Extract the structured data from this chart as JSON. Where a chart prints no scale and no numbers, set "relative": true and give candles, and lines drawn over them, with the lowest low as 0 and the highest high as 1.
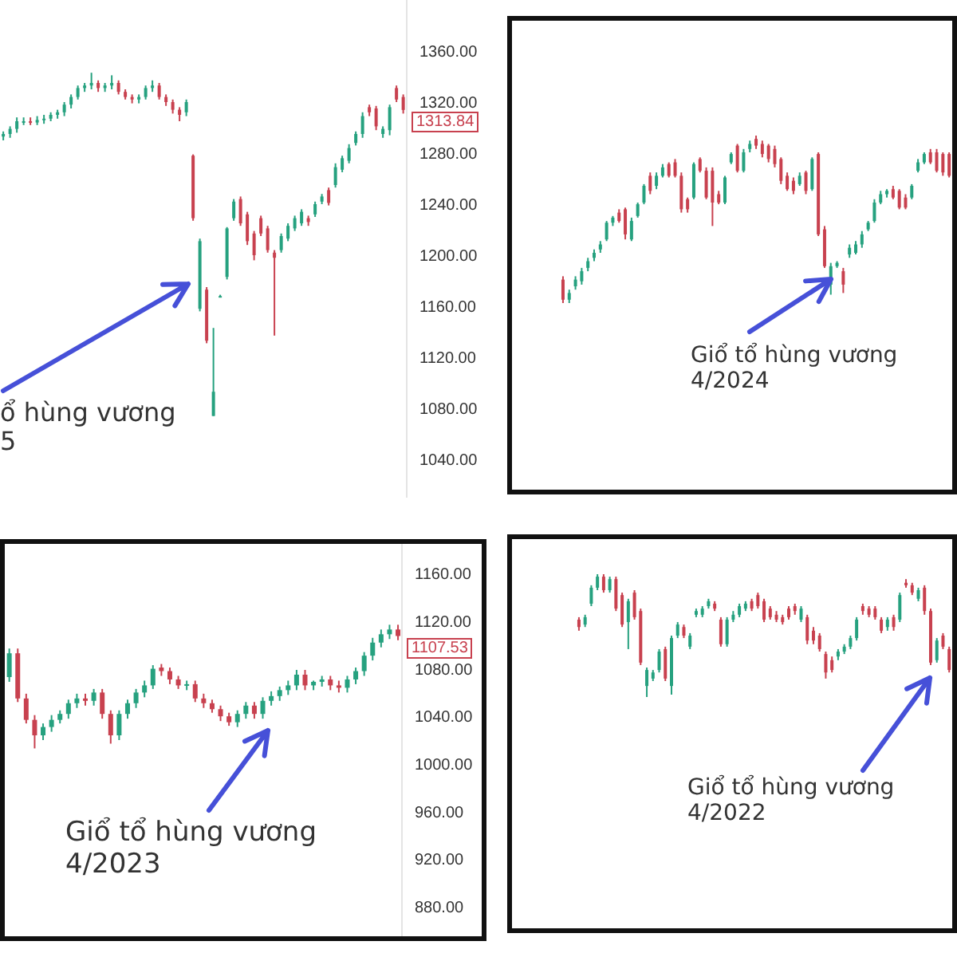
{
  "chart_data": [
    {
      "type": "candlestick",
      "ylim": [
        1010,
        1400
      ],
      "colors": [
        "#26a17f",
        "#26a17f",
        "#26a17f",
        "#26a17f",
        "#c8414f",
        "#26a17f",
        "#26a17f",
        "#26a17f",
        "#26a17f",
        "#26a17f",
        "#26a17f",
        "#26a17f",
        "#26a17f",
        "#26a17f",
        "#c8414f",
        "#26a17f",
        "#26a17f",
        "#c8414f",
        "#c8414f",
        "#c8414f",
        "#26a17f",
        "#26a17f",
        "#26a17f",
        "#c8414f",
        "#c8414f",
        "#c8414f",
        "#c8414f",
        "#26a17f",
        "#c8414f",
        "#26a17f",
        "#c8414f",
        "#26a17f",
        "#26a17f",
        "#26a17f",
        "#26a17f",
        "#c8414f",
        "#c8414f",
        "#c8414f",
        "#c8414f",
        "#c8414f",
        "#c8414f",
        "#26a17f",
        "#26a17f",
        "#26a17f",
        "#26a17f",
        "#c8414f",
        "#26a17f",
        "#26a17f",
        "#c8414f",
        "#26a17f",
        "#26a17f",
        "#26a17f",
        "#26a17f",
        "#26a17f",
        "#c8414f",
        "#c8414f",
        "#26a17f",
        "#26a17f",
        "#c8414f",
        "#c8414f"
      ],
      "yticks": [
        {
          "value": 1040,
          "label": "1040.00"
        },
        {
          "value": 1080,
          "label": "1080.00"
        },
        {
          "value": 1120,
          "label": "1120.00"
        },
        {
          "value": 1160,
          "label": "1160.00"
        },
        {
          "value": 1200,
          "label": "1200.00"
        },
        {
          "value": 1240,
          "label": "1240.00"
        },
        {
          "value": 1280,
          "label": "1280.00"
        },
        {
          "value": 1320,
          "label": "1320.00"
        },
        {
          "value": 1360,
          "label": "1360.00"
        }
      ],
      "categories": [
        null,
        null,
        null,
        null,
        null,
        null,
        null,
        null,
        null,
        null,
        null,
        null,
        null,
        null,
        null,
        null,
        null,
        null,
        null,
        null,
        null,
        null,
        null,
        null,
        null,
        null,
        null,
        null,
        null,
        null,
        null,
        null,
        null,
        null,
        null,
        null,
        null,
        null,
        null,
        null,
        null,
        null,
        null,
        null,
        null,
        null,
        null,
        null,
        null,
        null,
        null,
        null,
        null,
        null,
        null,
        null,
        null,
        null,
        null,
        null
      ],
      "ohlc": [
        [
          1293,
          1297,
          1290,
          1295
        ],
        [
          1295,
          1301,
          1292,
          1299
        ],
        [
          1299,
          1308,
          1296,
          1305
        ],
        [
          1304,
          1308,
          1302,
          1305
        ],
        [
          1305,
          1308,
          1302,
          1304
        ],
        [
          1304,
          1309,
          1302,
          1306
        ],
        [
          1306,
          1310,
          1303,
          1307
        ],
        [
          1307,
          1312,
          1305,
          1310
        ],
        [
          1310,
          1314,
          1307,
          1312
        ],
        [
          1312,
          1320,
          1309,
          1318
        ],
        [
          1318,
          1326,
          1315,
          1324
        ],
        [
          1324,
          1333,
          1322,
          1331
        ],
        [
          1331,
          1335,
          1328,
          1333
        ],
        [
          1333,
          1343,
          1330,
          1335
        ],
        [
          1335,
          1337,
          1328,
          1331
        ],
        [
          1331,
          1335,
          1328,
          1333
        ],
        [
          1333,
          1341,
          1330,
          1335
        ],
        [
          1335,
          1337,
          1326,
          1328
        ],
        [
          1328,
          1330,
          1322,
          1324
        ],
        [
          1324,
          1326,
          1319,
          1322
        ],
        [
          1322,
          1326,
          1319,
          1324
        ],
        [
          1324,
          1333,
          1322,
          1331
        ],
        [
          1331,
          1337,
          1328,
          1333
        ],
        [
          1333,
          1335,
          1322,
          1324
        ],
        [
          1324,
          1326,
          1317,
          1320
        ],
        [
          1320,
          1322,
          1311,
          1314
        ],
        [
          1314,
          1316,
          1305,
          1310
        ],
        [
          1312,
          1322,
          1309,
          1320
        ],
        [
          1278,
          1279,
          1227,
          1229
        ],
        [
          1158,
          1213,
          1156,
          1211
        ],
        [
          1173,
          1175,
          1131,
          1133
        ],
        [
          1074,
          1143,
          1074,
          1093
        ],
        [
          1168,
          1169,
          1167,
          1168
        ],
        [
          1183,
          1222,
          1181,
          1221
        ],
        [
          1229,
          1244,
          1227,
          1242
        ],
        [
          1244,
          1246,
          1223,
          1225
        ],
        [
          1232,
          1234,
          1208,
          1211
        ],
        [
          1217,
          1219,
          1196,
          1200
        ],
        [
          1229,
          1231,
          1215,
          1217
        ],
        [
          1221,
          1223,
          1202,
          1204
        ],
        [
          1202,
          1204,
          1137,
          1198
        ],
        [
          1204,
          1217,
          1202,
          1215
        ],
        [
          1213,
          1225,
          1211,
          1223
        ],
        [
          1221,
          1231,
          1219,
          1229
        ],
        [
          1225,
          1236,
          1223,
          1234
        ],
        [
          1229,
          1231,
          1223,
          1226
        ],
        [
          1232,
          1242,
          1230,
          1240
        ],
        [
          1242,
          1248,
          1240,
          1246
        ],
        [
          1251,
          1253,
          1239,
          1241
        ],
        [
          1255,
          1272,
          1253,
          1269
        ],
        [
          1267,
          1278,
          1265,
          1276
        ],
        [
          1274,
          1287,
          1272,
          1284
        ],
        [
          1288,
          1297,
          1286,
          1295
        ],
        [
          1295,
          1312,
          1292,
          1309
        ],
        [
          1316,
          1318,
          1309,
          1312
        ],
        [
          1315,
          1317,
          1298,
          1301
        ],
        [
          1295,
          1301,
          1292,
          1299
        ],
        [
          1298,
          1318,
          1294,
          1316
        ],
        [
          1331,
          1333,
          1320,
          1322
        ],
        [
          1324,
          1326,
          1311,
          1313.84
        ]
      ],
      "annotations": [
        "ổ hùng vương\n5",
        "1313.84"
      ]
    },
    {
      "type": "candlestick",
      "relative": true,
      "colors": [
        "#c8414f",
        "#26a17f",
        "#26a17f",
        "#26a17f",
        "#26a17f",
        "#26a17f",
        "#26a17f",
        "#26a17f",
        "#26a17f",
        "#c8414f",
        "#c8414f",
        "#26a17f",
        "#26a17f",
        "#26a17f",
        "#c8414f",
        "#26a17f",
        "#26a17f",
        "#c8414f",
        "#c8414f",
        "#c8414f",
        "#c8414f",
        "#26a17f",
        "#c8414f",
        "#c8414f",
        "#c8414f",
        "#c8414f",
        "#26a17f",
        "#26a17f",
        "#c8414f",
        "#26a17f",
        "#26a17f",
        "#c8414f",
        "#c8414f",
        "#c8414f",
        "#c8414f",
        "#c8414f",
        "#c8414f",
        "#c8414f",
        "#26a17f",
        "#c8414f",
        "#26a17f",
        "#c8414f",
        "#c8414f",
        "#26a17f",
        "#26a17f",
        "#c8414f",
        "#26a17f",
        "#26a17f",
        "#26a17f",
        "#26a17f",
        "#26a17f",
        "#26a17f",
        "#26a17f",
        "#c8414f",
        "#c8414f",
        "#c8414f",
        "#26a17f",
        "#26a17f",
        "#26a17f",
        "#c8414f",
        "#c8414f",
        "#c8414f",
        "#c8414f"
      ],
      "categories": [
        null,
        null,
        null,
        null,
        null,
        null,
        null,
        null,
        null,
        null,
        null,
        null,
        null,
        null,
        null,
        null,
        null,
        null,
        null,
        null,
        null,
        null,
        null,
        null,
        null,
        null,
        null,
        null,
        null,
        null,
        null,
        null,
        null,
        null,
        null,
        null,
        null,
        null,
        null,
        null,
        null,
        null,
        null,
        null,
        null,
        null,
        null,
        null,
        null,
        null,
        null,
        null,
        null,
        null,
        null,
        null,
        null,
        null,
        null,
        null,
        null,
        null,
        null
      ],
      "ohlc": [
        [
          0.14,
          0.16,
          0.0,
          0.02
        ],
        [
          0.02,
          0.08,
          0.0,
          0.06
        ],
        [
          0.1,
          0.16,
          0.08,
          0.14
        ],
        [
          0.13,
          0.21,
          0.11,
          0.19
        ],
        [
          0.21,
          0.27,
          0.19,
          0.25
        ],
        [
          0.27,
          0.32,
          0.25,
          0.3
        ],
        [
          0.32,
          0.37,
          0.3,
          0.35
        ],
        [
          0.38,
          0.49,
          0.37,
          0.48
        ],
        [
          0.48,
          0.52,
          0.46,
          0.51
        ],
        [
          0.54,
          0.56,
          0.48,
          0.49
        ],
        [
          0.56,
          0.57,
          0.38,
          0.41
        ],
        [
          0.38,
          0.51,
          0.37,
          0.49
        ],
        [
          0.52,
          0.6,
          0.51,
          0.59
        ],
        [
          0.6,
          0.71,
          0.59,
          0.7
        ],
        [
          0.76,
          0.78,
          0.65,
          0.67
        ],
        [
          0.7,
          0.78,
          0.68,
          0.76
        ],
        [
          0.76,
          0.83,
          0.75,
          0.81
        ],
        [
          0.83,
          0.84,
          0.75,
          0.76
        ],
        [
          0.84,
          0.86,
          0.75,
          0.76
        ],
        [
          0.76,
          0.78,
          0.54,
          0.56
        ],
        [
          0.62,
          0.63,
          0.54,
          0.56
        ],
        [
          0.63,
          0.84,
          0.62,
          0.83
        ],
        [
          0.86,
          0.87,
          0.78,
          0.79
        ],
        [
          0.79,
          0.81,
          0.62,
          0.63
        ],
        [
          0.79,
          0.81,
          0.46,
          0.6
        ],
        [
          0.65,
          0.67,
          0.59,
          0.6
        ],
        [
          0.6,
          0.76,
          0.59,
          0.75
        ],
        [
          0.84,
          0.9,
          0.83,
          0.89
        ],
        [
          0.94,
          0.95,
          0.78,
          0.79
        ],
        [
          0.79,
          0.92,
          0.78,
          0.9
        ],
        [
          0.92,
          0.97,
          0.9,
          0.95
        ],
        [
          0.98,
          1.0,
          0.92,
          0.94
        ],
        [
          0.95,
          0.97,
          0.87,
          0.89
        ],
        [
          0.94,
          0.95,
          0.84,
          0.86
        ],
        [
          0.92,
          0.94,
          0.81,
          0.83
        ],
        [
          0.86,
          0.87,
          0.71,
          0.73
        ],
        [
          0.76,
          0.78,
          0.67,
          0.68
        ],
        [
          0.73,
          0.75,
          0.65,
          0.67
        ],
        [
          0.71,
          0.78,
          0.7,
          0.76
        ],
        [
          0.78,
          0.79,
          0.65,
          0.67
        ],
        [
          0.68,
          0.87,
          0.67,
          0.86
        ],
        [
          0.89,
          0.9,
          0.4,
          0.41
        ],
        [
          0.44,
          0.46,
          0.21,
          0.22
        ],
        [
          0.11,
          0.24,
          0.05,
          0.22
        ],
        [
          0.22,
          0.25,
          0.21,
          0.24
        ],
        [
          0.19,
          0.21,
          0.06,
          0.11
        ],
        [
          0.29,
          0.35,
          0.27,
          0.33
        ],
        [
          0.3,
          0.37,
          0.29,
          0.35
        ],
        [
          0.35,
          0.43,
          0.33,
          0.41
        ],
        [
          0.44,
          0.49,
          0.43,
          0.48
        ],
        [
          0.49,
          0.62,
          0.48,
          0.6
        ],
        [
          0.6,
          0.67,
          0.59,
          0.65
        ],
        [
          0.65,
          0.68,
          0.63,
          0.67
        ],
        [
          0.68,
          0.7,
          0.62,
          0.63
        ],
        [
          0.67,
          0.68,
          0.56,
          0.57
        ],
        [
          0.63,
          0.65,
          0.56,
          0.57
        ],
        [
          0.63,
          0.71,
          0.62,
          0.7
        ],
        [
          0.79,
          0.86,
          0.78,
          0.84
        ],
        [
          0.84,
          0.9,
          0.83,
          0.89
        ],
        [
          0.9,
          0.92,
          0.83,
          0.84
        ],
        [
          0.9,
          0.92,
          0.78,
          0.79
        ],
        [
          0.89,
          0.9,
          0.76,
          0.78
        ],
        [
          0.89,
          0.9,
          0.75,
          0.76
        ]
      ],
      "annotations": [
        "Giổ tổ hùng vương\n4/2024"
      ]
    },
    {
      "type": "candlestick",
      "ylim": [
        855,
        1185
      ],
      "colors": [
        "#26a17f",
        "#c8414f",
        "#c8414f",
        "#c8414f",
        "#26a17f",
        "#26a17f",
        "#26a17f",
        "#26a17f",
        "#26a17f",
        "#c8414f",
        "#26a17f",
        "#c8414f",
        "#c8414f",
        "#26a17f",
        "#26a17f",
        "#26a17f",
        "#26a17f",
        "#26a17f",
        "#c8414f",
        "#c8414f",
        "#c8414f",
        "#26a17f",
        "#c8414f",
        "#c8414f",
        "#c8414f",
        "#c8414f",
        "#c8414f",
        "#26a17f",
        "#26a17f",
        "#c8414f",
        "#26a17f",
        "#26a17f",
        "#26a17f",
        "#26a17f",
        "#26a17f",
        "#c8414f",
        "#26a17f",
        "#26a17f",
        "#c8414f",
        "#c8414f",
        "#26a17f",
        "#26a17f",
        "#26a17f",
        "#26a17f",
        "#26a17f",
        "#26a17f",
        "#c8414f"
      ],
      "yticks": [
        {
          "value": 880,
          "label": "880.00"
        },
        {
          "value": 920,
          "label": "920.00"
        },
        {
          "value": 960,
          "label": "960.00"
        },
        {
          "value": 1000,
          "label": "1000.00"
        },
        {
          "value": 1040,
          "label": "1040.00"
        },
        {
          "value": 1080,
          "label": "1080.00"
        },
        {
          "value": 1120,
          "label": "1120.00"
        },
        {
          "value": 1160,
          "label": "1160.00"
        }
      ],
      "categories": [
        null,
        null,
        null,
        null,
        null,
        null,
        null,
        null,
        null,
        null,
        null,
        null,
        null,
        null,
        null,
        null,
        null,
        null,
        null,
        null,
        null,
        null,
        null,
        null,
        null,
        null,
        null,
        null,
        null,
        null,
        null,
        null,
        null,
        null,
        null,
        null,
        null,
        null,
        null,
        null,
        null,
        null,
        null,
        null,
        null,
        null,
        null
      ],
      "ohlc": [
        [
          1073,
          1097,
          1069,
          1093
        ],
        [
          1093,
          1097,
          1052,
          1055
        ],
        [
          1055,
          1059,
          1034,
          1037
        ],
        [
          1037,
          1041,
          1013,
          1024
        ],
        [
          1024,
          1034,
          1020,
          1031
        ],
        [
          1031,
          1041,
          1027,
          1037
        ],
        [
          1037,
          1045,
          1034,
          1042
        ],
        [
          1042,
          1054,
          1038,
          1051
        ],
        [
          1051,
          1059,
          1047,
          1055
        ],
        [
          1055,
          1059,
          1049,
          1053
        ],
        [
          1053,
          1063,
          1049,
          1060
        ],
        [
          1060,
          1063,
          1038,
          1042
        ],
        [
          1042,
          1045,
          1017,
          1024
        ],
        [
          1024,
          1045,
          1020,
          1042
        ],
        [
          1042,
          1054,
          1038,
          1051
        ],
        [
          1051,
          1063,
          1047,
          1060
        ],
        [
          1060,
          1070,
          1056,
          1066
        ],
        [
          1066,
          1083,
          1063,
          1080
        ],
        [
          1081,
          1084,
          1074,
          1078
        ],
        [
          1078,
          1081,
          1067,
          1071
        ],
        [
          1071,
          1074,
          1063,
          1066
        ],
        [
          1066,
          1070,
          1062,
          1067
        ],
        [
          1067,
          1070,
          1052,
          1055
        ],
        [
          1055,
          1059,
          1047,
          1051
        ],
        [
          1051,
          1054,
          1043,
          1046
        ],
        [
          1046,
          1049,
          1036,
          1040
        ],
        [
          1040,
          1043,
          1032,
          1035
        ],
        [
          1035,
          1045,
          1031,
          1042
        ],
        [
          1042,
          1052,
          1038,
          1049
        ],
        [
          1049,
          1052,
          1038,
          1042
        ],
        [
          1042,
          1056,
          1038,
          1053
        ],
        [
          1053,
          1061,
          1049,
          1057
        ],
        [
          1057,
          1065,
          1053,
          1062
        ],
        [
          1062,
          1070,
          1058,
          1066
        ],
        [
          1066,
          1079,
          1062,
          1075
        ],
        [
          1075,
          1079,
          1062,
          1066
        ],
        [
          1066,
          1070,
          1062,
          1069
        ],
        [
          1069,
          1074,
          1065,
          1071
        ],
        [
          1071,
          1074,
          1062,
          1066
        ],
        [
          1066,
          1070,
          1060,
          1064
        ],
        [
          1064,
          1074,
          1060,
          1071
        ],
        [
          1071,
          1081,
          1067,
          1078
        ],
        [
          1078,
          1094,
          1074,
          1091
        ],
        [
          1091,
          1106,
          1087,
          1102
        ],
        [
          1102,
          1113,
          1098,
          1109
        ],
        [
          1109,
          1117,
          1105,
          1113
        ],
        [
          1113,
          1117,
          1104,
          1107.53
        ]
      ],
      "annotations": [
        "Giổ tổ hùng vương\n4/2023",
        "1107.53"
      ]
    },
    {
      "type": "candlestick",
      "relative": true,
      "colors": [
        "#c8414f",
        "#26a17f",
        "#26a17f",
        "#26a17f",
        "#c8414f",
        "#26a17f",
        "#c8414f",
        "#c8414f",
        "#26a17f",
        "#c8414f",
        "#c8414f",
        "#26a17f",
        "#26a17f",
        "#26a17f",
        "#c8414f",
        "#26a17f",
        "#26a17f",
        "#c8414f",
        "#26a17f",
        "#26a17f",
        "#26a17f",
        "#26a17f",
        "#c8414f",
        "#c8414f",
        "#26a17f",
        "#26a17f",
        "#26a17f",
        "#26a17f",
        "#c8414f",
        "#c8414f",
        "#c8414f",
        "#c8414f",
        "#c8414f",
        "#c8414f",
        "#c8414f",
        "#c8414f",
        "#26a17f",
        "#c8414f",
        "#c8414f",
        "#c8414f",
        "#c8414f",
        "#c8414f",
        "#26a17f",
        "#26a17f",
        "#26a17f",
        "#26a17f",
        "#c8414f",
        "#c8414f",
        "#c8414f",
        "#c8414f",
        "#26a17f",
        "#c8414f",
        "#26a17f",
        "#c8414f",
        "#c8414f",
        "#26a17f",
        "#c8414f",
        "#c8414f",
        "#26a17f",
        "#c8414f",
        "#c8414f"
      ],
      "categories": [
        null,
        null,
        null,
        null,
        null,
        null,
        null,
        null,
        null,
        null,
        null,
        null,
        null,
        null,
        null,
        null,
        null,
        null,
        null,
        null,
        null,
        null,
        null,
        null,
        null,
        null,
        null,
        null,
        null,
        null,
        null,
        null,
        null,
        null,
        null,
        null,
        null,
        null,
        null,
        null,
        null,
        null,
        null,
        null,
        null,
        null,
        null,
        null,
        null,
        null,
        null,
        null,
        null,
        null,
        null,
        null,
        null,
        null,
        null,
        null,
        null
      ],
      "ohlc": [
        [
          0.63,
          0.65,
          0.54,
          0.57
        ],
        [
          0.59,
          0.67,
          0.57,
          0.65
        ],
        [
          0.76,
          0.91,
          0.74,
          0.89
        ],
        [
          0.89,
          1.0,
          0.87,
          0.98
        ],
        [
          0.98,
          1.0,
          0.85,
          0.87
        ],
        [
          0.87,
          0.98,
          0.85,
          0.96
        ],
        [
          0.96,
          0.98,
          0.7,
          0.72
        ],
        [
          0.83,
          0.85,
          0.57,
          0.59
        ],
        [
          0.61,
          0.8,
          0.39,
          0.78
        ],
        [
          0.85,
          0.87,
          0.63,
          0.65
        ],
        [
          0.7,
          0.72,
          0.26,
          0.28
        ],
        [
          0.09,
          0.24,
          0.0,
          0.22
        ],
        [
          0.15,
          0.22,
          0.13,
          0.2
        ],
        [
          0.22,
          0.39,
          0.2,
          0.37
        ],
        [
          0.39,
          0.41,
          0.13,
          0.15
        ],
        [
          0.09,
          0.5,
          0.02,
          0.48
        ],
        [
          0.5,
          0.61,
          0.48,
          0.59
        ],
        [
          0.57,
          0.59,
          0.48,
          0.5
        ],
        [
          0.41,
          0.52,
          0.39,
          0.5
        ],
        [
          0.67,
          0.72,
          0.65,
          0.7
        ],
        [
          0.67,
          0.74,
          0.65,
          0.72
        ],
        [
          0.74,
          0.8,
          0.72,
          0.78
        ],
        [
          0.76,
          0.78,
          0.7,
          0.72
        ],
        [
          0.63,
          0.65,
          0.41,
          0.43
        ],
        [
          0.43,
          0.65,
          0.41,
          0.63
        ],
        [
          0.63,
          0.7,
          0.61,
          0.67
        ],
        [
          0.67,
          0.76,
          0.65,
          0.74
        ],
        [
          0.72,
          0.78,
          0.7,
          0.76
        ],
        [
          0.78,
          0.8,
          0.7,
          0.72
        ],
        [
          0.83,
          0.85,
          0.72,
          0.74
        ],
        [
          0.78,
          0.8,
          0.61,
          0.63
        ],
        [
          0.72,
          0.74,
          0.63,
          0.65
        ],
        [
          0.67,
          0.7,
          0.61,
          0.63
        ],
        [
          0.65,
          0.67,
          0.59,
          0.61
        ],
        [
          0.72,
          0.74,
          0.63,
          0.65
        ],
        [
          0.74,
          0.76,
          0.67,
          0.7
        ],
        [
          0.63,
          0.74,
          0.61,
          0.72
        ],
        [
          0.65,
          0.67,
          0.43,
          0.46
        ],
        [
          0.54,
          0.57,
          0.43,
          0.46
        ],
        [
          0.5,
          0.52,
          0.37,
          0.39
        ],
        [
          0.35,
          0.37,
          0.15,
          0.2
        ],
        [
          0.3,
          0.33,
          0.2,
          0.22
        ],
        [
          0.33,
          0.39,
          0.3,
          0.37
        ],
        [
          0.37,
          0.43,
          0.35,
          0.41
        ],
        [
          0.41,
          0.5,
          0.39,
          0.48
        ],
        [
          0.48,
          0.65,
          0.46,
          0.63
        ],
        [
          0.74,
          0.76,
          0.67,
          0.7
        ],
        [
          0.72,
          0.74,
          0.65,
          0.67
        ],
        [
          0.72,
          0.74,
          0.63,
          0.65
        ],
        [
          0.63,
          0.65,
          0.52,
          0.54
        ],
        [
          0.57,
          0.65,
          0.54,
          0.63
        ],
        [
          0.65,
          0.67,
          0.54,
          0.57
        ],
        [
          0.63,
          0.85,
          0.61,
          0.83
        ],
        [
          0.93,
          0.96,
          0.89,
          0.91
        ],
        [
          0.91,
          0.93,
          0.83,
          0.85
        ],
        [
          0.8,
          0.89,
          0.78,
          0.87
        ],
        [
          0.89,
          0.91,
          0.67,
          0.7
        ],
        [
          0.7,
          0.72,
          0.26,
          0.28
        ],
        [
          0.3,
          0.48,
          0.28,
          0.46
        ],
        [
          0.5,
          0.52,
          0.39,
          0.41
        ],
        [
          0.39,
          0.41,
          0.2,
          0.22
        ]
      ],
      "annotations": [
        "Giổ tổ hùng vương\n4/2022"
      ]
    }
  ]
}
